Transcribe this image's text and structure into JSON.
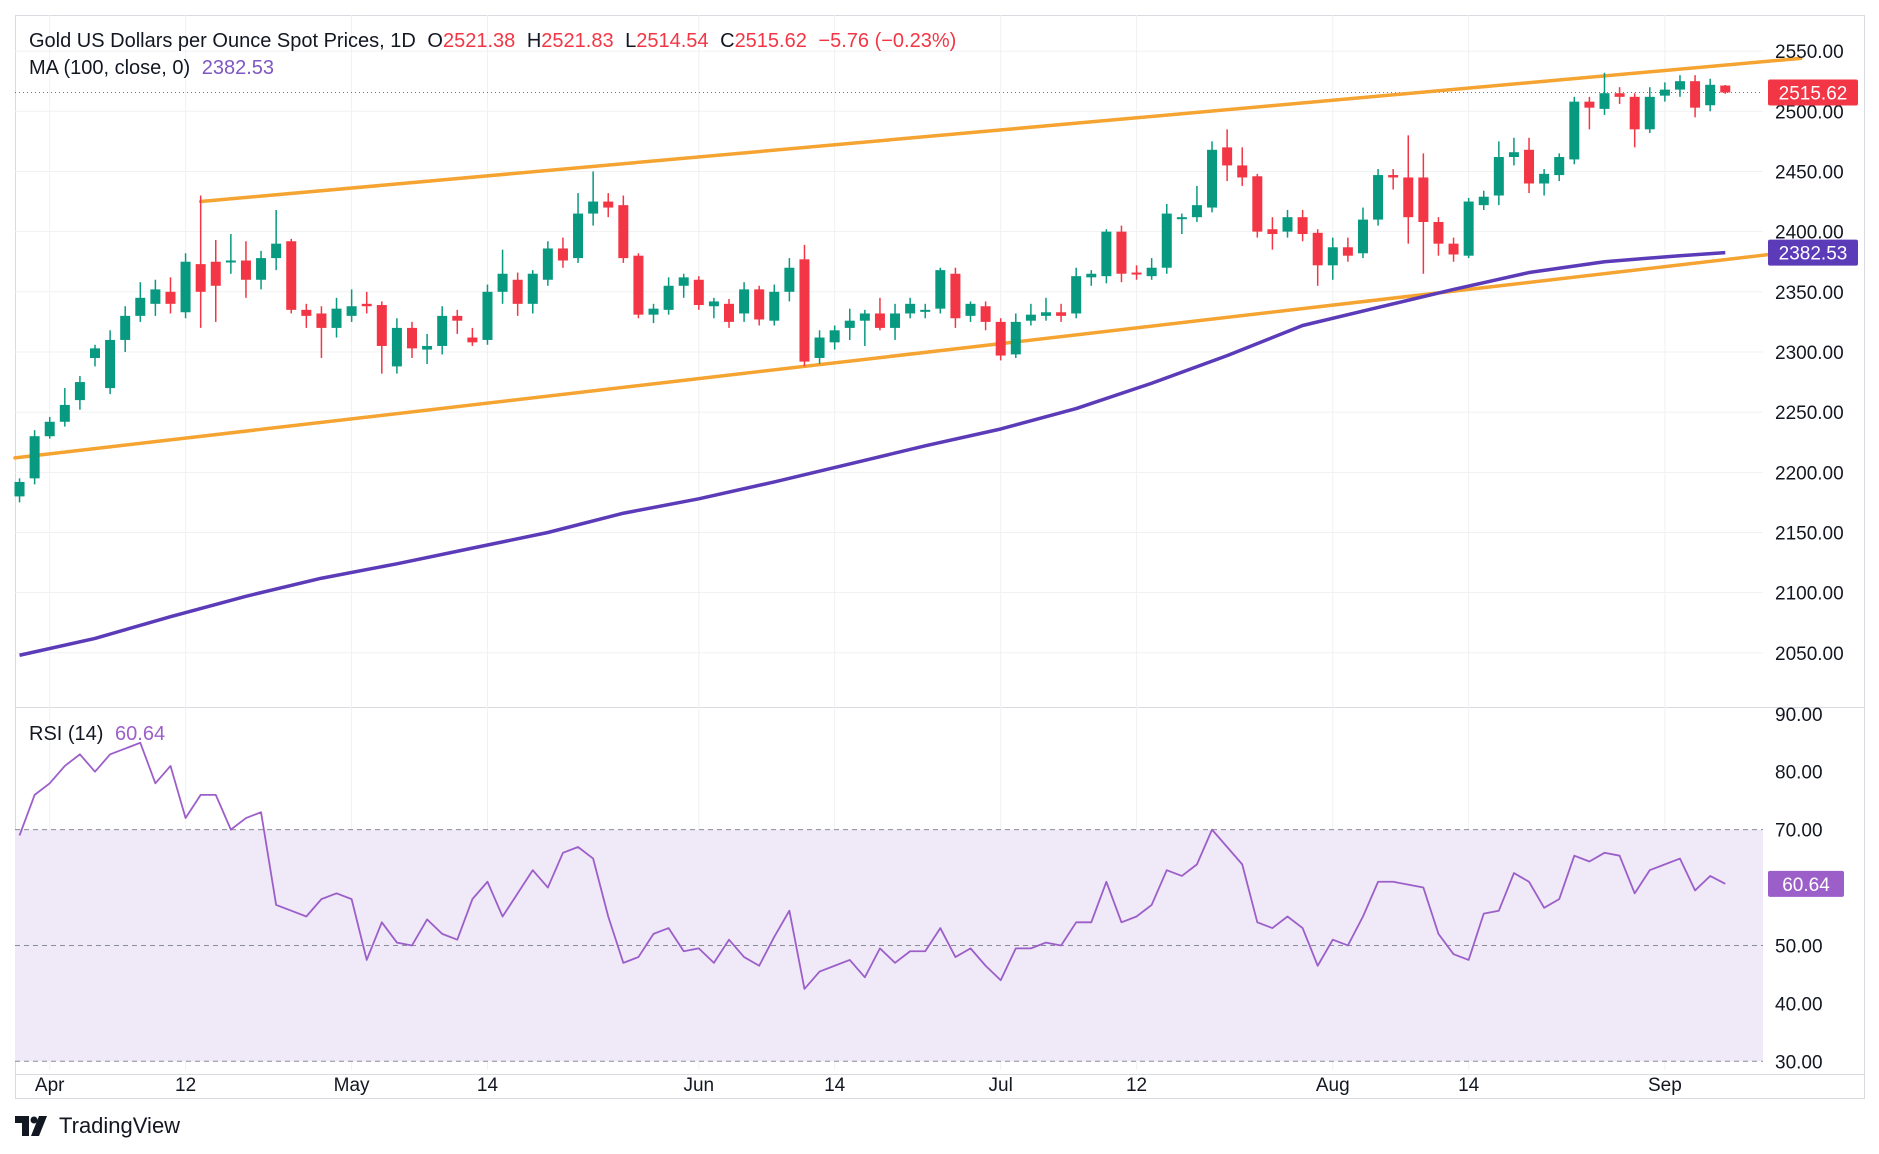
{
  "header": {
    "title": "Gold US Dollars per Ounce Spot Prices, 1D",
    "open_label": "O",
    "open": "2521.38",
    "high_label": "H",
    "high": "2521.83",
    "low_label": "L",
    "low": "2514.54",
    "close_label": "C",
    "close": "2515.62",
    "change": "−5.76 (−0.23%)",
    "ma_label": "MA (100, close, 0)",
    "ma_value": "2382.53",
    "rsi_label": "RSI (14)",
    "rsi_value": "60.64"
  },
  "branding": {
    "name": "TradingView"
  },
  "colors": {
    "up": "#089981",
    "down": "#f23645",
    "trendline": "#f5a331",
    "ma": "#5b3bb8",
    "rsi": "#9c5fc9",
    "rsi_band": "#efe9f8",
    "last_price": "#f23645"
  },
  "chart_data": [
    {
      "type": "candlestick",
      "title": "Gold US Dollars per Ounce Spot Prices, 1D",
      "ylim": [
        2005,
        2580
      ],
      "yticks": [
        "2050.00",
        "2100.00",
        "2150.00",
        "2200.00",
        "2250.00",
        "2300.00",
        "2350.00",
        "2400.00",
        "2450.00",
        "2500.00",
        "2550.00"
      ],
      "xticks": [
        {
          "label": "Apr",
          "x": 2
        },
        {
          "label": "12",
          "x": 11
        },
        {
          "label": "May",
          "x": 22
        },
        {
          "label": "14",
          "x": 31
        },
        {
          "label": "Jun",
          "x": 45
        },
        {
          "label": "14",
          "x": 54
        },
        {
          "label": "Jul",
          "x": 65
        },
        {
          "label": "12",
          "x": 74
        },
        {
          "label": "Aug",
          "x": 87
        },
        {
          "label": "14",
          "x": 96
        },
        {
          "label": "Sep",
          "x": 109
        }
      ],
      "xlim": [
        -0.3,
        115.5
      ],
      "candles": [
        [
          0,
          2180,
          2192,
          2175,
          2195
        ],
        [
          1,
          2195,
          2230,
          2190,
          2235
        ],
        [
          2,
          2230,
          2242,
          2228,
          2246
        ],
        [
          3,
          2242,
          2256,
          2238,
          2270
        ],
        [
          4,
          2260,
          2275,
          2252,
          2280
        ],
        [
          5,
          2295,
          2303,
          2288,
          2306
        ],
        [
          6,
          2270,
          2310,
          2265,
          2318
        ],
        [
          7,
          2310,
          2330,
          2300,
          2338
        ],
        [
          8,
          2330,
          2345,
          2325,
          2358
        ],
        [
          9,
          2340,
          2352,
          2330,
          2360
        ],
        [
          10,
          2350,
          2340,
          2332,
          2362
        ],
        [
          11,
          2333,
          2375,
          2328,
          2382
        ],
        [
          12,
          2373,
          2350,
          2320,
          2430
        ],
        [
          13,
          2375,
          2355,
          2325,
          2393
        ],
        [
          14,
          2375,
          2376,
          2365,
          2398
        ],
        [
          15,
          2376,
          2360,
          2345,
          2392
        ],
        [
          16,
          2360,
          2378,
          2352,
          2384
        ],
        [
          17,
          2378,
          2390,
          2368,
          2418
        ],
        [
          18,
          2392,
          2335,
          2332,
          2394
        ],
        [
          19,
          2335,
          2330,
          2320,
          2340
        ],
        [
          20,
          2332,
          2320,
          2295,
          2338
        ],
        [
          21,
          2320,
          2336,
          2312,
          2345
        ],
        [
          22,
          2330,
          2338,
          2325,
          2352
        ],
        [
          23,
          2340,
          2338,
          2332,
          2350
        ],
        [
          24,
          2339,
          2305,
          2282,
          2342
        ],
        [
          25,
          2288,
          2320,
          2282,
          2328
        ],
        [
          26,
          2320,
          2303,
          2295,
          2325
        ],
        [
          27,
          2302,
          2305,
          2290,
          2315
        ],
        [
          28,
          2305,
          2330,
          2298,
          2338
        ],
        [
          29,
          2330,
          2326,
          2315,
          2335
        ],
        [
          30,
          2312,
          2308,
          2305,
          2320
        ],
        [
          31,
          2310,
          2350,
          2306,
          2356
        ],
        [
          32,
          2350,
          2365,
          2340,
          2385
        ],
        [
          33,
          2360,
          2340,
          2330,
          2366
        ],
        [
          34,
          2340,
          2365,
          2332,
          2368
        ],
        [
          35,
          2360,
          2386,
          2355,
          2392
        ],
        [
          36,
          2386,
          2376,
          2370,
          2395
        ],
        [
          37,
          2378,
          2415,
          2374,
          2432
        ],
        [
          38,
          2415,
          2425,
          2405,
          2450
        ],
        [
          39,
          2425,
          2420,
          2412,
          2432
        ],
        [
          40,
          2422,
          2378,
          2374,
          2430
        ],
        [
          41,
          2380,
          2331,
          2328,
          2382
        ],
        [
          42,
          2331,
          2336,
          2324,
          2340
        ],
        [
          43,
          2335,
          2355,
          2331,
          2362
        ],
        [
          44,
          2355,
          2362,
          2345,
          2365
        ],
        [
          45,
          2360,
          2339,
          2335,
          2363
        ],
        [
          46,
          2338,
          2342,
          2328,
          2345
        ],
        [
          47,
          2340,
          2325,
          2320,
          2344
        ],
        [
          48,
          2332,
          2352,
          2325,
          2358
        ],
        [
          49,
          2352,
          2327,
          2322,
          2355
        ],
        [
          50,
          2326,
          2350,
          2322,
          2356
        ],
        [
          51,
          2350,
          2370,
          2342,
          2378
        ],
        [
          52,
          2377,
          2292,
          2288,
          2389
        ],
        [
          53,
          2295,
          2312,
          2290,
          2318
        ],
        [
          54,
          2308,
          2318,
          2302,
          2322
        ],
        [
          55,
          2320,
          2326,
          2310,
          2336
        ],
        [
          56,
          2326,
          2332,
          2305,
          2335
        ],
        [
          57,
          2332,
          2320,
          2318,
          2345
        ],
        [
          58,
          2320,
          2332,
          2310,
          2340
        ],
        [
          59,
          2332,
          2340,
          2328,
          2345
        ],
        [
          60,
          2335,
          2335,
          2328,
          2340
        ],
        [
          61,
          2336,
          2368,
          2332,
          2370
        ],
        [
          62,
          2365,
          2328,
          2320,
          2370
        ],
        [
          63,
          2330,
          2340,
          2325,
          2342
        ],
        [
          64,
          2338,
          2325,
          2318,
          2342
        ],
        [
          65,
          2325,
          2297,
          2293,
          2328
        ],
        [
          66,
          2298,
          2325,
          2295,
          2332
        ],
        [
          67,
          2326,
          2331,
          2322,
          2340
        ],
        [
          68,
          2330,
          2333,
          2326,
          2345
        ],
        [
          69,
          2333,
          2330,
          2325,
          2340
        ],
        [
          70,
          2332,
          2363,
          2328,
          2370
        ],
        [
          71,
          2362,
          2365,
          2355,
          2368
        ],
        [
          72,
          2363,
          2400,
          2357,
          2402
        ],
        [
          73,
          2400,
          2365,
          2358,
          2405
        ],
        [
          74,
          2366,
          2365,
          2360,
          2372
        ],
        [
          75,
          2363,
          2370,
          2360,
          2378
        ],
        [
          76,
          2370,
          2415,
          2365,
          2423
        ],
        [
          77,
          2412,
          2412,
          2398,
          2415
        ],
        [
          78,
          2412,
          2422,
          2408,
          2438
        ],
        [
          79,
          2420,
          2468,
          2416,
          2475
        ],
        [
          80,
          2470,
          2455,
          2442,
          2485
        ],
        [
          81,
          2455,
          2445,
          2438,
          2470
        ],
        [
          82,
          2446,
          2400,
          2395,
          2448
        ],
        [
          83,
          2402,
          2398,
          2385,
          2412
        ],
        [
          84,
          2400,
          2412,
          2395,
          2418
        ],
        [
          85,
          2412,
          2398,
          2392,
          2418
        ],
        [
          86,
          2399,
          2372,
          2355,
          2402
        ],
        [
          87,
          2372,
          2387,
          2360,
          2395
        ],
        [
          88,
          2387,
          2380,
          2375,
          2395
        ],
        [
          89,
          2382,
          2410,
          2378,
          2420
        ],
        [
          90,
          2410,
          2447,
          2405,
          2452
        ],
        [
          91,
          2447,
          2445,
          2435,
          2452
        ],
        [
          92,
          2445,
          2412,
          2390,
          2480
        ],
        [
          93,
          2445,
          2408,
          2365,
          2465
        ],
        [
          94,
          2408,
          2390,
          2380,
          2412
        ],
        [
          95,
          2390,
          2381,
          2375,
          2395
        ],
        [
          96,
          2380,
          2425,
          2378,
          2428
        ],
        [
          97,
          2422,
          2429,
          2418,
          2434
        ],
        [
          98,
          2430,
          2462,
          2422,
          2475
        ],
        [
          99,
          2462,
          2466,
          2455,
          2478
        ],
        [
          100,
          2468,
          2440,
          2432,
          2478
        ],
        [
          101,
          2440,
          2448,
          2430,
          2452
        ],
        [
          102,
          2447,
          2462,
          2442,
          2465
        ],
        [
          103,
          2460,
          2508,
          2456,
          2512
        ],
        [
          104,
          2508,
          2503,
          2485,
          2512
        ],
        [
          105,
          2502,
          2515,
          2497,
          2532
        ],
        [
          106,
          2515,
          2512,
          2506,
          2520
        ],
        [
          107,
          2512,
          2485,
          2470,
          2515
        ],
        [
          108,
          2485,
          2512,
          2482,
          2520
        ],
        [
          109,
          2513,
          2518,
          2508,
          2524
        ],
        [
          110,
          2518,
          2525,
          2512,
          2530
        ],
        [
          111,
          2525,
          2503,
          2495,
          2530
        ],
        [
          112,
          2505,
          2522,
          2500,
          2527
        ],
        [
          113,
          2521.38,
          2515.62,
          2514.54,
          2521.83
        ]
      ],
      "ma_100": [
        [
          0,
          2048
        ],
        [
          5,
          2062
        ],
        [
          10,
          2080
        ],
        [
          15,
          2097
        ],
        [
          20,
          2112
        ],
        [
          25,
          2124
        ],
        [
          30,
          2137
        ],
        [
          35,
          2150
        ],
        [
          40,
          2166
        ],
        [
          45,
          2178
        ],
        [
          50,
          2192
        ],
        [
          55,
          2207
        ],
        [
          60,
          2222
        ],
        [
          65,
          2236
        ],
        [
          70,
          2253
        ],
        [
          75,
          2274
        ],
        [
          80,
          2297
        ],
        [
          85,
          2322
        ],
        [
          90,
          2337
        ],
        [
          95,
          2352
        ],
        [
          100,
          2366
        ],
        [
          105,
          2375
        ],
        [
          110,
          2380
        ],
        [
          113,
          2382.53
        ]
      ],
      "trendlines": [
        {
          "name": "upper-trendline",
          "points": [
            [
              12,
              2425
            ],
            [
              118,
              2544
            ]
          ]
        },
        {
          "name": "lower-trendline",
          "points": [
            [
              -0.3,
              2212
            ],
            [
              118,
              2384
            ]
          ]
        }
      ],
      "last_price": 2515.62,
      "ma_last": 2382.53
    },
    {
      "type": "line",
      "title": "RSI (14)",
      "ylim": [
        28.5,
        91
      ],
      "yticks": [
        "30.00",
        "40.00",
        "50.00",
        "60.00",
        "70.00",
        "80.00",
        "90.00"
      ],
      "band": [
        30,
        70
      ],
      "midline": 50,
      "values": [
        69,
        76,
        78,
        81,
        83,
        80,
        83,
        84,
        85,
        78,
        81,
        72,
        76,
        76,
        70,
        72,
        73,
        57,
        56,
        55,
        58,
        59,
        58,
        47.5,
        54,
        50.5,
        50,
        54.5,
        52,
        51,
        58,
        61,
        55,
        59,
        63,
        60,
        66,
        67,
        65,
        55,
        47,
        48,
        52,
        53,
        49,
        49.5,
        47,
        51,
        48,
        46.5,
        51.5,
        56,
        42.5,
        45.5,
        46.5,
        47.5,
        44.5,
        49.5,
        47,
        49,
        49,
        53,
        48,
        49.5,
        46.5,
        44,
        49.5,
        49.5,
        50.5,
        50,
        54,
        54,
        61,
        54,
        55,
        57,
        63,
        62,
        64,
        70,
        67,
        64,
        54,
        53,
        55,
        53,
        46.5,
        51,
        50,
        55,
        61,
        61,
        60.5,
        60,
        52,
        48.5,
        47.5,
        55.5,
        56,
        62.5,
        61,
        56.5,
        58,
        65.5,
        64.5,
        66,
        65.5,
        59,
        63,
        64,
        65,
        59.5,
        62,
        60.64
      ]
    }
  ]
}
